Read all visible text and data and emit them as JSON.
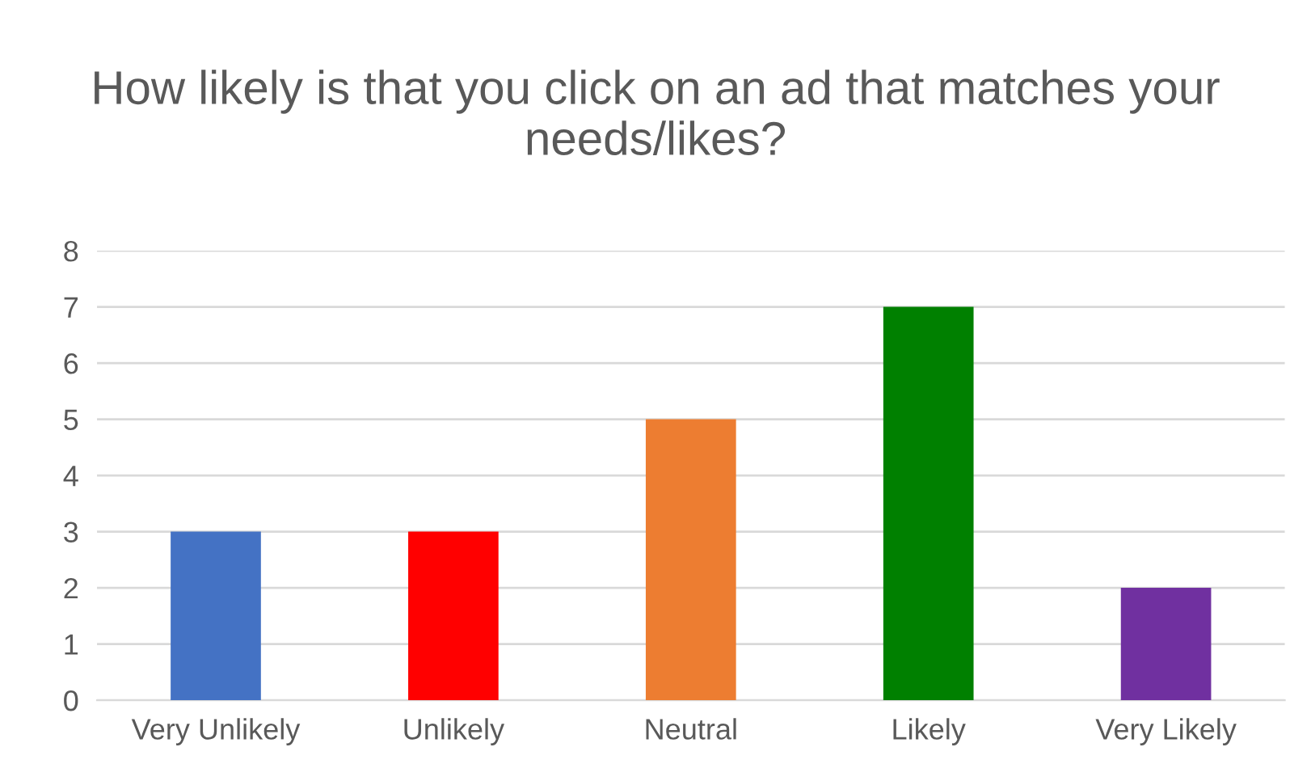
{
  "chart_data": {
    "type": "bar",
    "title": "How likely is that you click on an ad that matches your needs/likes?",
    "categories": [
      "Very Unlikely",
      "Unlikely",
      "Neutral",
      "Likely",
      "Very Likely"
    ],
    "values": [
      3,
      3,
      5,
      7,
      2
    ],
    "colors": [
      "#4472c4",
      "#ff0000",
      "#ed7d31",
      "#008000",
      "#7030a0"
    ],
    "ylim": [
      0,
      8
    ],
    "yticks": [
      0,
      1,
      2,
      3,
      4,
      5,
      6,
      7,
      8
    ],
    "grid": "y",
    "legend": false
  }
}
